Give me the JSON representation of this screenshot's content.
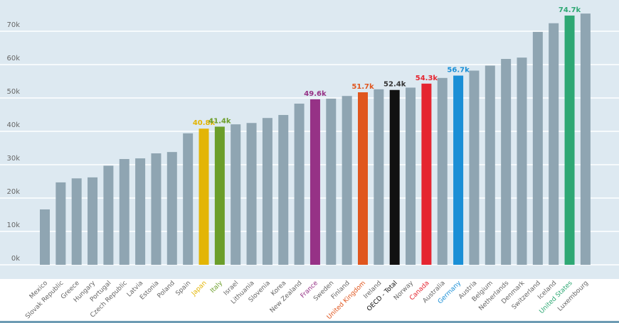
{
  "chart_data": {
    "type": "bar",
    "title": "",
    "xlabel": "",
    "ylabel": "",
    "ylim": [
      0,
      80000
    ],
    "yticks": [
      0,
      10000,
      20000,
      30000,
      40000,
      50000,
      60000,
      70000
    ],
    "ytick_labels": [
      "0k",
      "10k",
      "20k",
      "30k",
      "40k",
      "50k",
      "60k",
      "70k"
    ],
    "grid": true,
    "legend": "none",
    "default_color": "#8fa5b2",
    "default_label_color": "#666666",
    "background": "#dde9f1",
    "categories": [
      "Mexico",
      "Slovak Republic",
      "Greece",
      "Hungary",
      "Portugal",
      "Czech Republic",
      "Latvia",
      "Estonia",
      "Poland",
      "Spain",
      "Japan",
      "Italy",
      "Israel",
      "Lithuania",
      "Slovenia",
      "Korea",
      "New Zealand",
      "France",
      "Sweden",
      "Finland",
      "United Kingdom",
      "Ireland",
      "OECD - Total",
      "Norway",
      "Canada",
      "Australia",
      "Germany",
      "Austria",
      "Belgium",
      "Netherlands",
      "Denmark",
      "Switzerland",
      "Iceland",
      "United States",
      "Luxembourg"
    ],
    "values": [
      16600,
      24700,
      25900,
      26200,
      29700,
      31700,
      31900,
      33400,
      33800,
      39400,
      40800,
      41400,
      42100,
      42500,
      44000,
      44900,
      48300,
      49600,
      49800,
      50600,
      51700,
      52600,
      52400,
      53100,
      54300,
      56000,
      56700,
      58200,
      59700,
      61700,
      62100,
      69800,
      72400,
      74700,
      75300
    ],
    "highlights": [
      {
        "category": "Japan",
        "label": "40.8k",
        "color": "#e3b505"
      },
      {
        "category": "Italy",
        "label": "41.4k",
        "color": "#6b9e2a"
      },
      {
        "category": "France",
        "label": "49.6k",
        "color": "#963286"
      },
      {
        "category": "United Kingdom",
        "label": "51.7k",
        "color": "#e0561e"
      },
      {
        "category": "OECD - Total",
        "label": "52.4k",
        "color": "#111111",
        "label_color": "#333333"
      },
      {
        "category": "Canada",
        "label": "54.3k",
        "color": "#e52530"
      },
      {
        "category": "Germany",
        "label": "56.7k",
        "color": "#1a8fd6"
      },
      {
        "category": "United States",
        "label": "74.7k",
        "color": "#2ea874"
      }
    ]
  }
}
